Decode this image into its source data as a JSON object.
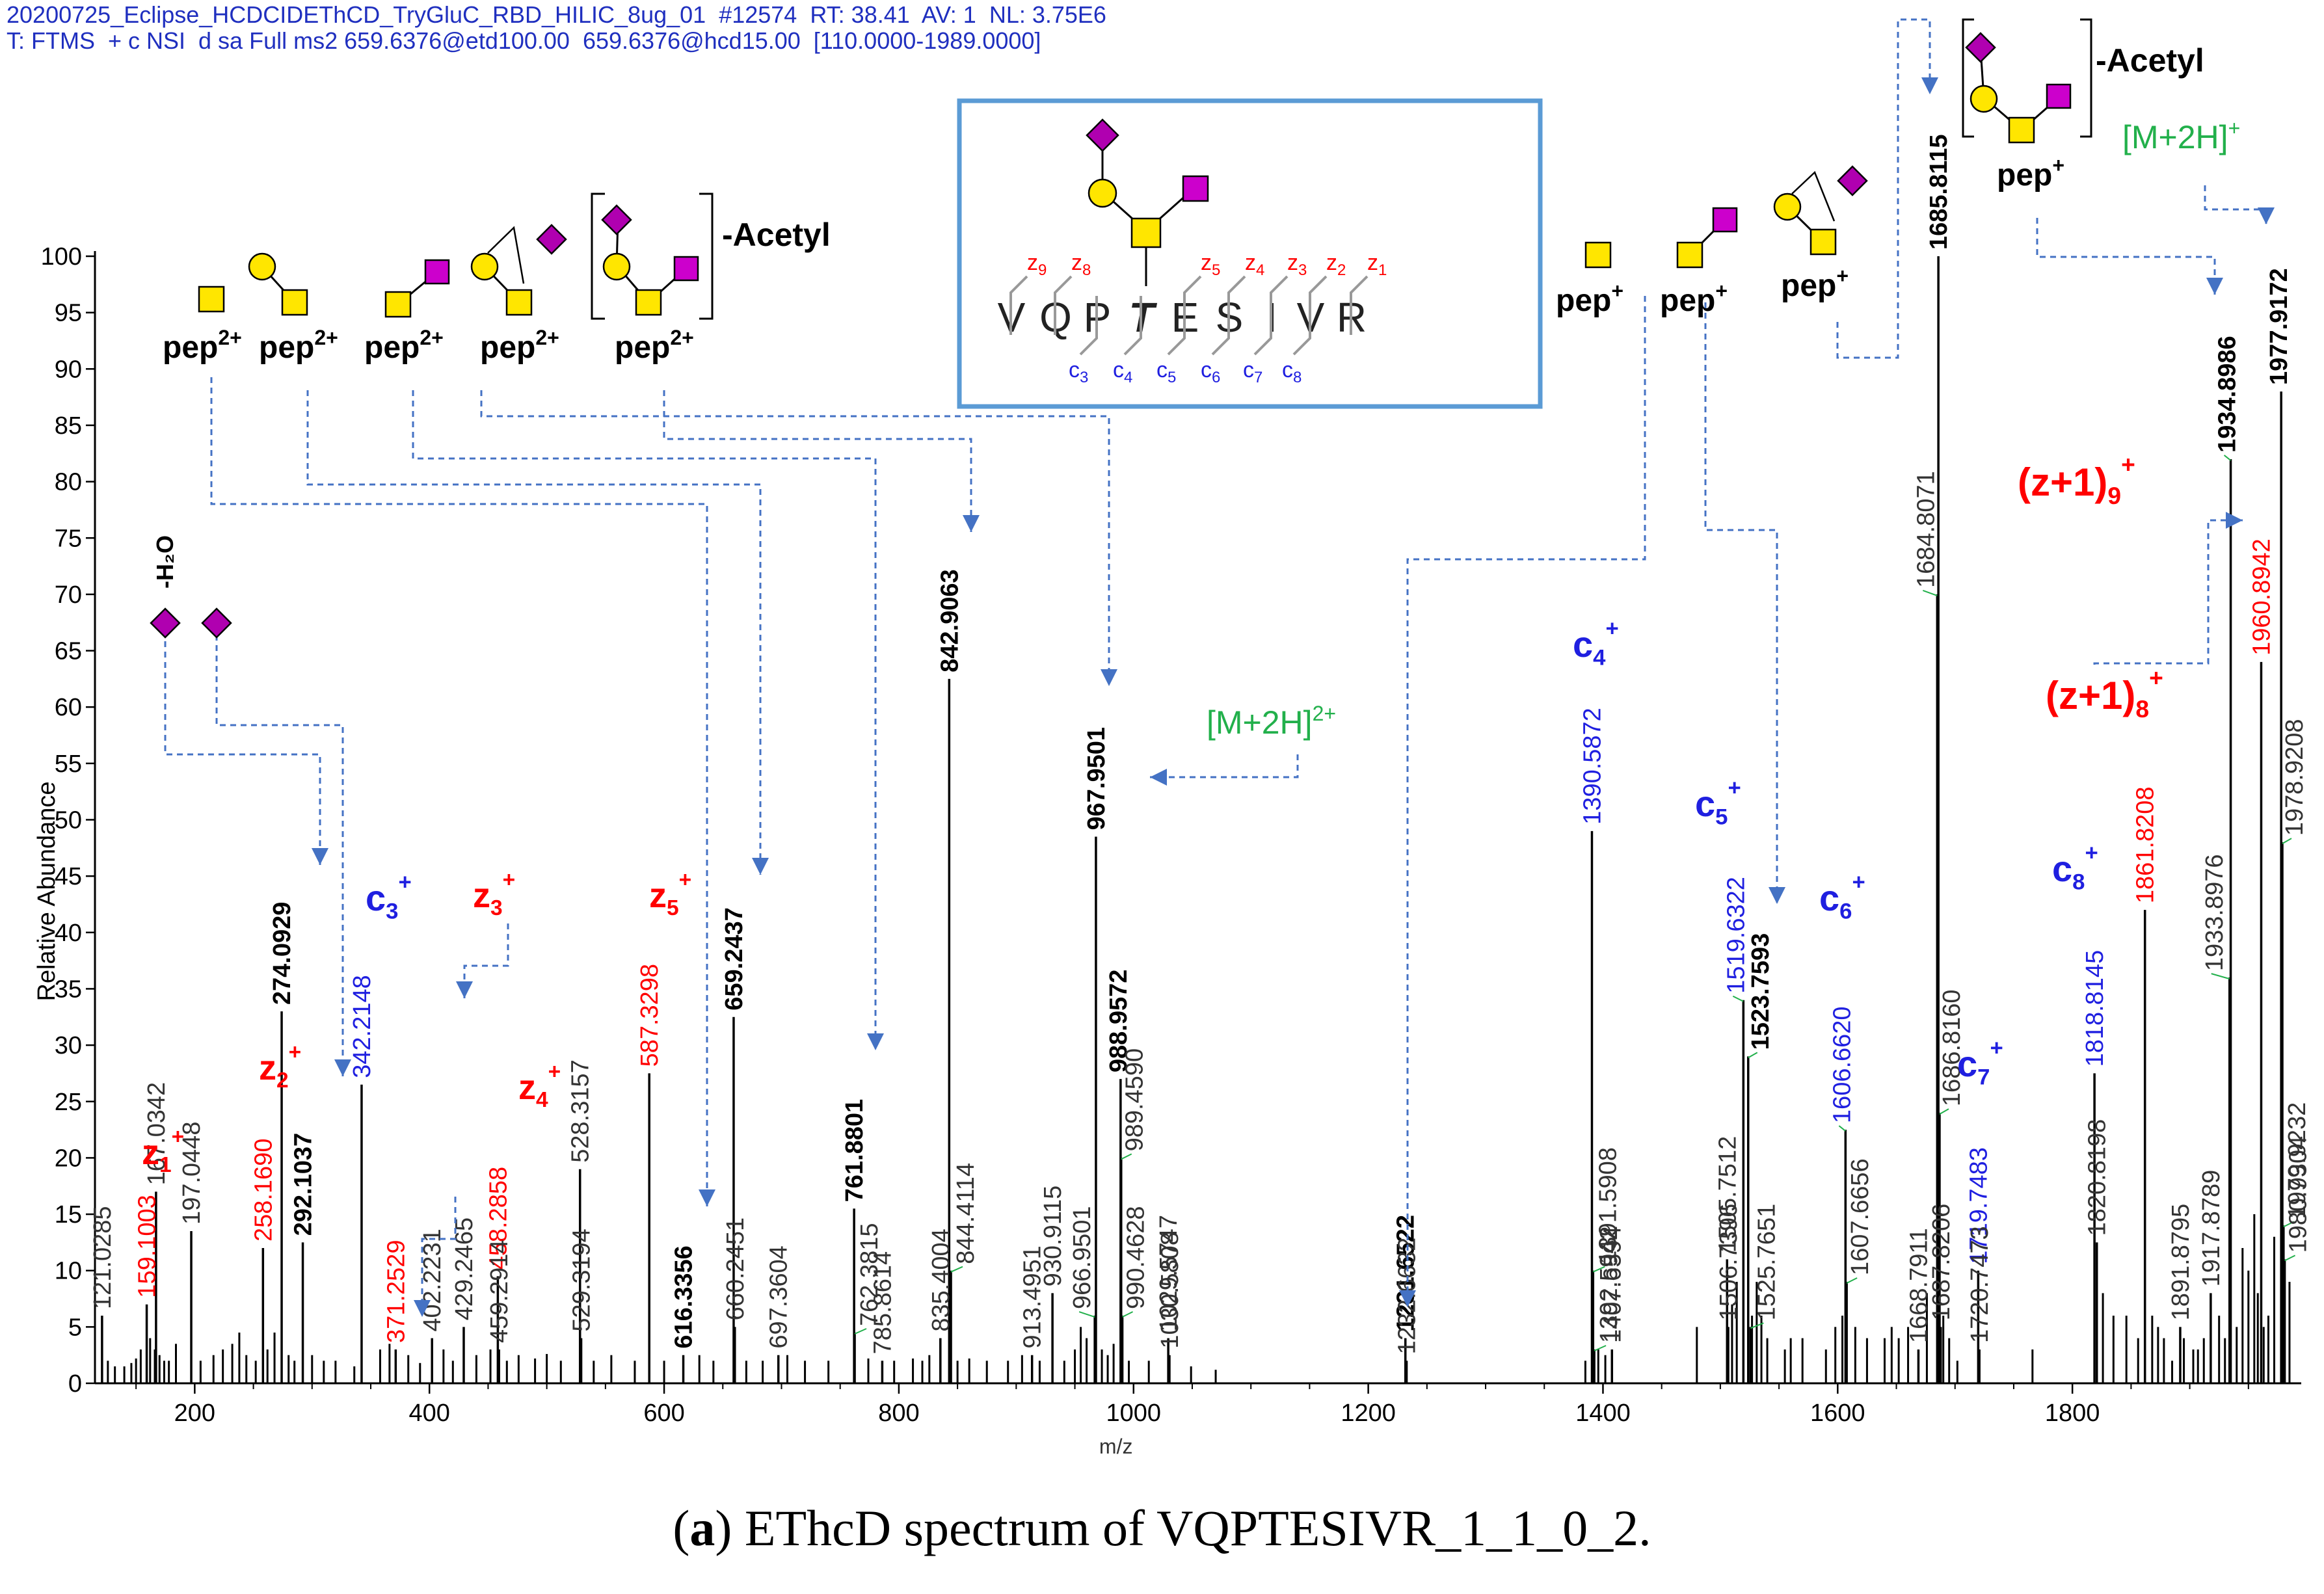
{
  "header": {
    "line1": "20200725_Eclipse_HCDCIDEThCD_TryGluC_RBD_HILIC_8ug_01  #12574  RT: 38.41  AV: 1  NL: 3.75E6",
    "line2": "T: FTMS  + c NSI  d sa Full ms2 659.6376@etd100.00  659.6376@hcd15.00  [110.0000-1989.0000]"
  },
  "caption": {
    "prefix": "(",
    "letter": "a",
    "text": ") EThcD spectrum of VQPTESIVR_1_1_0_2."
  },
  "colors": {
    "peak": "#000000",
    "c_ion": "#1f1fe0",
    "z_ion": "#ff0000",
    "precursor": "#22b04b",
    "arrow": "#4472c4",
    "glcnac": "#ffe600",
    "gal": "#ffe600",
    "neuac": "#b000b0",
    "galnac": "#cc00cc",
    "box": "#5b9bd5"
  },
  "chart_data": {
    "type": "bar",
    "title": "",
    "xlabel": "m/z",
    "ylabel": "Relative Abundance",
    "xlim": [
      115,
      1995
    ],
    "ylim": [
      0,
      100
    ],
    "xticks": [
      200,
      400,
      600,
      800,
      1000,
      1200,
      1400,
      1600,
      1800
    ],
    "yticks": [
      0,
      5,
      10,
      15,
      20,
      25,
      30,
      35,
      40,
      45,
      50,
      55,
      60,
      65,
      70,
      75,
      80,
      85,
      90,
      95,
      100
    ],
    "peaks": [
      {
        "mz": 121.0285,
        "y": 6,
        "label": "121.0285",
        "color": "gray"
      },
      {
        "mz": 159.1003,
        "y": 7,
        "label": "159.1003",
        "color": "red"
      },
      {
        "mz": 167.0342,
        "y": 17,
        "label": "167.0342",
        "color": "gray"
      },
      {
        "mz": 197.0448,
        "y": 13.5,
        "label": "197.0448",
        "color": "gray"
      },
      {
        "mz": 258.169,
        "y": 12,
        "label": "258.1690",
        "color": "red"
      },
      {
        "mz": 274.0929,
        "y": 33,
        "label": "274.0929",
        "color": "black",
        "bold": true
      },
      {
        "mz": 292.1037,
        "y": 12.5,
        "label": "292.1037",
        "color": "black",
        "bold": true
      },
      {
        "mz": 342.2148,
        "y": 26.5,
        "label": "342.2148",
        "color": "blue"
      },
      {
        "mz": 371.2529,
        "y": 3,
        "label": "371.2529",
        "color": "red"
      },
      {
        "mz": 402.2231,
        "y": 4,
        "label": "402.2231",
        "color": "gray"
      },
      {
        "mz": 429.2465,
        "y": 5,
        "label": "429.2465",
        "color": "gray"
      },
      {
        "mz": 458.2858,
        "y": 9.5,
        "label": "458.2858",
        "color": "red"
      },
      {
        "mz": 459.2914,
        "y": 3,
        "label": "459.2914",
        "color": "gray"
      },
      {
        "mz": 528.3157,
        "y": 19,
        "label": "528.3157",
        "color": "gray"
      },
      {
        "mz": 529.3194,
        "y": 4,
        "label": "529.3194",
        "color": "gray"
      },
      {
        "mz": 587.3298,
        "y": 27.5,
        "label": "587.3298",
        "color": "red"
      },
      {
        "mz": 616.3356,
        "y": 2.5,
        "label": "616.3356",
        "color": "black",
        "bold": true
      },
      {
        "mz": 659.2437,
        "y": 32.5,
        "label": "659.2437",
        "color": "black",
        "bold": true
      },
      {
        "mz": 660.2451,
        "y": 5,
        "label": "660.2451",
        "color": "gray"
      },
      {
        "mz": 697.3604,
        "y": 2.5,
        "label": "697.3604",
        "color": "gray"
      },
      {
        "mz": 761.8801,
        "y": 15.5,
        "label": "761.8801",
        "color": "black",
        "bold": true
      },
      {
        "mz": 762.3815,
        "y": 4.5,
        "label": "762.3815",
        "color": "gray"
      },
      {
        "mz": 785.8614,
        "y": 2,
        "label": "785.8614",
        "color": "gray"
      },
      {
        "mz": 835.4004,
        "y": 4,
        "label": "835.4004",
        "color": "gray"
      },
      {
        "mz": 842.9063,
        "y": 62.5,
        "label": "842.9063",
        "color": "black",
        "bold": true
      },
      {
        "mz": 844.4114,
        "y": 10,
        "label": "844.4114",
        "color": "gray"
      },
      {
        "mz": 913.4951,
        "y": 2.5,
        "label": "913.4951",
        "color": "gray"
      },
      {
        "mz": 930.9115,
        "y": 8,
        "label": "930.9115",
        "color": "gray"
      },
      {
        "mz": 966.9501,
        "y": 6,
        "label": "966.9501",
        "color": "gray"
      },
      {
        "mz": 967.9501,
        "y": 48.5,
        "label": "967.9501",
        "color": "black",
        "bold": true
      },
      {
        "mz": 988.9572,
        "y": 27,
        "label": "988.9572",
        "color": "black",
        "bold": true
      },
      {
        "mz": 989.459,
        "y": 20,
        "label": "989.4590",
        "color": "gray"
      },
      {
        "mz": 990.4628,
        "y": 6,
        "label": "990.4628",
        "color": "gray"
      },
      {
        "mz": 1029.5747,
        "y": 4,
        "label": "1029.5747",
        "color": "gray"
      },
      {
        "mz": 1030.5808,
        "y": 2.5,
        "label": "1030.5808",
        "color": "gray"
      },
      {
        "mz": 1231.6522,
        "y": 4,
        "label": "1231.6522",
        "color": "black",
        "bold": true
      },
      {
        "mz": 1232.6632,
        "y": 2,
        "label": "1232.6632",
        "color": "gray"
      },
      {
        "mz": 1390.5872,
        "y": 49,
        "label": "1390.5872",
        "color": "blue"
      },
      {
        "mz": 1391.5908,
        "y": 10,
        "label": "1391.5908",
        "color": "gray"
      },
      {
        "mz": 1392.5942,
        "y": 3,
        "label": "1392.5942",
        "color": "gray"
      },
      {
        "mz": 1407.6594,
        "y": 3,
        "label": "1407.6594",
        "color": "gray"
      },
      {
        "mz": 1505.7512,
        "y": 11,
        "label": "1505.7512",
        "color": "gray"
      },
      {
        "mz": 1506.7396,
        "y": 5,
        "label": "1506.7396",
        "color": "gray"
      },
      {
        "mz": 1519.6322,
        "y": 34,
        "label": "1519.6322",
        "color": "blue"
      },
      {
        "mz": 1523.7593,
        "y": 29,
        "label": "1523.7593",
        "color": "black",
        "bold": true
      },
      {
        "mz": 1525.7651,
        "y": 5,
        "label": "1525.7651",
        "color": "gray"
      },
      {
        "mz": 1606.662,
        "y": 22.5,
        "label": "1606.6620",
        "color": "blue"
      },
      {
        "mz": 1607.6656,
        "y": 9,
        "label": "1607.6656",
        "color": "gray"
      },
      {
        "mz": 1668.7911,
        "y": 3,
        "label": "1668.7911",
        "color": "gray"
      },
      {
        "mz": 1684.8071,
        "y": 70,
        "label": "1684.8071",
        "color": "gray"
      },
      {
        "mz": 1685.8115,
        "y": 100,
        "label": "1685.8115",
        "color": "black",
        "bold": true
      },
      {
        "mz": 1686.816,
        "y": 24,
        "label": "1686.8160",
        "color": "gray"
      },
      {
        "mz": 1687.8206,
        "y": 5,
        "label": "1687.8206",
        "color": "gray"
      },
      {
        "mz": 1719.7483,
        "y": 10,
        "label": "1719.7483",
        "color": "blue"
      },
      {
        "mz": 1720.7473,
        "y": 3,
        "label": "1720.7473",
        "color": "gray"
      },
      {
        "mz": 1818.8145,
        "y": 27.5,
        "label": "1818.8145",
        "color": "blue"
      },
      {
        "mz": 1820.8198,
        "y": 12.5,
        "label": "1820.8198",
        "color": "gray"
      },
      {
        "mz": 1861.8208,
        "y": 42,
        "label": "1861.8208",
        "color": "red"
      },
      {
        "mz": 1891.8795,
        "y": 5,
        "label": "1891.8795",
        "color": "gray"
      },
      {
        "mz": 1917.8789,
        "y": 8,
        "label": "1917.8789",
        "color": "gray"
      },
      {
        "mz": 1933.8976,
        "y": 36,
        "label": "1933.8976",
        "color": "gray"
      },
      {
        "mz": 1934.8986,
        "y": 82,
        "label": "1934.8986",
        "color": "black",
        "bold": true
      },
      {
        "mz": 1960.8942,
        "y": 64,
        "label": "1960.8942",
        "color": "red"
      },
      {
        "mz": 1977.9172,
        "y": 88,
        "label": "1977.9172",
        "color": "black",
        "bold": true
      },
      {
        "mz": 1978.9208,
        "y": 48,
        "label": "1978.9208",
        "color": "gray"
      },
      {
        "mz": 1979.9232,
        "y": 14,
        "label": "1979.9232",
        "color": "gray"
      },
      {
        "mz": 1980.9304,
        "y": 11,
        "label": "1980.9304",
        "color": "gray"
      }
    ],
    "minor_peaks": [
      [
        126,
        2
      ],
      [
        132,
        1.5
      ],
      [
        140,
        1.5
      ],
      [
        146,
        1.8
      ],
      [
        150,
        2.2
      ],
      [
        154,
        3
      ],
      [
        162,
        4
      ],
      [
        166,
        3
      ],
      [
        170,
        2.5
      ],
      [
        174,
        2
      ],
      [
        178,
        2
      ],
      [
        184,
        3.5
      ],
      [
        205,
        2
      ],
      [
        216,
        2.5
      ],
      [
        224,
        3
      ],
      [
        232,
        3.5
      ],
      [
        238,
        4.5
      ],
      [
        244,
        2.5
      ],
      [
        252,
        2
      ],
      [
        262,
        3
      ],
      [
        268,
        4.5
      ],
      [
        280,
        2.5
      ],
      [
        285,
        2
      ],
      [
        300,
        2.5
      ],
      [
        310,
        2
      ],
      [
        320,
        2
      ],
      [
        336,
        1.5
      ],
      [
        358,
        3
      ],
      [
        366,
        3.5
      ],
      [
        382,
        2.5
      ],
      [
        392,
        1.8
      ],
      [
        412,
        3
      ],
      [
        420,
        2
      ],
      [
        440,
        2.5
      ],
      [
        452,
        3
      ],
      [
        466,
        2
      ],
      [
        476,
        2.5
      ],
      [
        490,
        2.2
      ],
      [
        500,
        2.6
      ],
      [
        512,
        2
      ],
      [
        540,
        2
      ],
      [
        555,
        2.5
      ],
      [
        575,
        2
      ],
      [
        600,
        2
      ],
      [
        630,
        2.5
      ],
      [
        642,
        2
      ],
      [
        670,
        2
      ],
      [
        684,
        2
      ],
      [
        705,
        2.5
      ],
      [
        720,
        2
      ],
      [
        740,
        2
      ],
      [
        774,
        2.2
      ],
      [
        796,
        2
      ],
      [
        812,
        2.2
      ],
      [
        820,
        2
      ],
      [
        826,
        2.5
      ],
      [
        850,
        2
      ],
      [
        860,
        2.2
      ],
      [
        875,
        2
      ],
      [
        893,
        2
      ],
      [
        905,
        2.5
      ],
      [
        920,
        2
      ],
      [
        941,
        2
      ],
      [
        950,
        3
      ],
      [
        955,
        5
      ],
      [
        960,
        4
      ],
      [
        973,
        3
      ],
      [
        978,
        2.5
      ],
      [
        983,
        3.5
      ],
      [
        996,
        2
      ],
      [
        1013,
        2
      ],
      [
        1049,
        1.5
      ],
      [
        1070,
        1.2
      ],
      [
        1385,
        2
      ],
      [
        1396,
        3
      ],
      [
        1402,
        2.5
      ],
      [
        1480,
        5
      ],
      [
        1510,
        7
      ],
      [
        1514,
        9
      ],
      [
        1527,
        6
      ],
      [
        1531,
        9
      ],
      [
        1535,
        6
      ],
      [
        1540,
        4
      ],
      [
        1555,
        3
      ],
      [
        1560,
        4
      ],
      [
        1570,
        4
      ],
      [
        1590,
        3
      ],
      [
        1598,
        5
      ],
      [
        1604,
        6
      ],
      [
        1615,
        5
      ],
      [
        1625,
        4
      ],
      [
        1640,
        4
      ],
      [
        1646,
        5
      ],
      [
        1652,
        4
      ],
      [
        1660,
        5
      ],
      [
        1676,
        8
      ],
      [
        1690,
        6
      ],
      [
        1695,
        4
      ],
      [
        1702,
        2
      ],
      [
        1766,
        3
      ],
      [
        1826,
        8
      ],
      [
        1835,
        6
      ],
      [
        1846,
        6
      ],
      [
        1856,
        4
      ],
      [
        1868,
        6
      ],
      [
        1873,
        5
      ],
      [
        1878,
        4
      ],
      [
        1885,
        2
      ],
      [
        1895,
        4
      ],
      [
        1903,
        3
      ],
      [
        1907,
        3
      ],
      [
        1912,
        4
      ],
      [
        1925,
        6
      ],
      [
        1930,
        4
      ],
      [
        1940,
        5
      ],
      [
        1945,
        12
      ],
      [
        1950,
        10
      ],
      [
        1955,
        15
      ],
      [
        1958,
        8
      ],
      [
        1963,
        5
      ],
      [
        1967,
        6
      ],
      [
        1972,
        13
      ],
      [
        1985,
        9
      ]
    ],
    "annotations": {
      "z1": {
        "base": "z",
        "sub": "1",
        "sup": "+",
        "color": "red"
      },
      "z2": {
        "base": "z",
        "sub": "2",
        "sup": "+",
        "color": "red"
      },
      "z3": {
        "base": "z",
        "sub": "3",
        "sup": "+",
        "color": "red"
      },
      "z4": {
        "base": "z",
        "sub": "4",
        "sup": "+",
        "color": "red"
      },
      "z5": {
        "base": "z",
        "sub": "5",
        "sup": "+",
        "color": "red"
      },
      "c3": {
        "base": "c",
        "sub": "3",
        "sup": "+",
        "color": "blue"
      },
      "c4": {
        "base": "c",
        "sub": "4",
        "sup": "+",
        "color": "blue"
      },
      "c5": {
        "base": "c",
        "sub": "5",
        "sup": "+",
        "color": "blue"
      },
      "c6": {
        "base": "c",
        "sub": "6",
        "sup": "+",
        "color": "blue"
      },
      "c7": {
        "base": "c",
        "sub": "7",
        "sup": "+",
        "color": "blue"
      },
      "c8": {
        "base": "c",
        "sub": "8",
        "sup": "+",
        "color": "blue"
      },
      "zp1_9": {
        "base": "(z+1)",
        "sub": "9",
        "sup": "+",
        "color": "red"
      },
      "zp1_8": {
        "base": "(z+1)",
        "sub": "8",
        "sup": "+",
        "color": "red"
      },
      "m2h_2": {
        "text": "[M+2H]",
        "sup": "2+",
        "color": "green"
      },
      "m2h_1": {
        "text": "[M+2H]",
        "sup": "+",
        "color": "green"
      },
      "pep2": {
        "text": "pep",
        "sup": "2+"
      },
      "pep1": {
        "text": "pep",
        "sup": "+"
      },
      "acetyl": "-Acetyl",
      "water_loss": "-H₂O"
    },
    "sequence": {
      "residues": [
        "V",
        "Q",
        "P",
        "T",
        "E",
        "S",
        "I",
        "V",
        "R"
      ],
      "glyco_index": 3,
      "z_ions": [
        "9",
        "8",
        "5",
        "4",
        "3",
        "2",
        "1"
      ],
      "c_ions": [
        "3",
        "4",
        "5",
        "6",
        "7",
        "8"
      ]
    }
  }
}
